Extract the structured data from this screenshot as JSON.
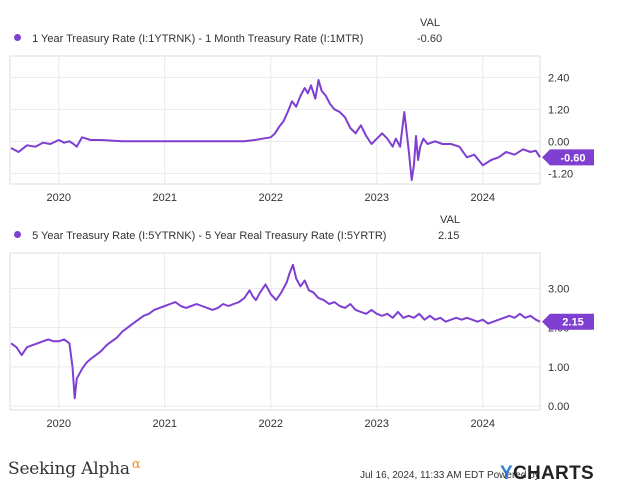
{
  "header": {
    "val_label": "VAL"
  },
  "colors": {
    "line": "#7f3fd1",
    "label_bg": "#7f3fd1",
    "grid": "#e9e9e9",
    "axis_text": "#333333"
  },
  "footer": {
    "brand": "Seeking Alpha",
    "brand_symbol": "α",
    "timestamp": "Jul 16, 2024, 11:33 AM EDT",
    "powered_by": "Powered by",
    "ycharts": "YCHARTS"
  },
  "chart_data": [
    {
      "type": "line",
      "series": [
        {
          "name": "1 Year Treasury Rate (I:1YTRNK) - 1 Month Treasury Rate (I:1MTR)",
          "x": [
            2019.55,
            2019.62,
            2019.7,
            2019.78,
            2019.85,
            2019.92,
            2020.0,
            2020.05,
            2020.1,
            2020.14,
            2020.17,
            2020.19,
            2020.22,
            2020.3,
            2020.4,
            2020.6,
            2020.8,
            2021.0,
            2021.2,
            2021.4,
            2021.6,
            2021.75,
            2021.85,
            2021.92,
            2022.0,
            2022.04,
            2022.08,
            2022.12,
            2022.16,
            2022.2,
            2022.24,
            2022.28,
            2022.32,
            2022.35,
            2022.38,
            2022.42,
            2022.45,
            2022.48,
            2022.52,
            2022.56,
            2022.6,
            2022.65,
            2022.7,
            2022.75,
            2022.8,
            2022.85,
            2022.9,
            2022.95,
            2023.0,
            2023.05,
            2023.1,
            2023.15,
            2023.18,
            2023.22,
            2023.26,
            2023.3,
            2023.33,
            2023.35,
            2023.37,
            2023.39,
            2023.41,
            2023.44,
            2023.48,
            2023.55,
            2023.62,
            2023.7,
            2023.78,
            2023.85,
            2023.92,
            2024.0,
            2024.08,
            2024.15,
            2024.22,
            2024.3,
            2024.38,
            2024.45,
            2024.5,
            2024.54
          ],
          "y": [
            -0.25,
            -0.4,
            -0.15,
            -0.2,
            -0.05,
            -0.1,
            0.05,
            -0.05,
            0.0,
            -0.1,
            -0.2,
            -0.05,
            0.15,
            0.05,
            0.05,
            0.0,
            0.0,
            0.0,
            0.0,
            0.0,
            0.0,
            0.0,
            0.05,
            0.1,
            0.15,
            0.3,
            0.55,
            0.75,
            1.1,
            1.5,
            1.3,
            1.7,
            2.0,
            1.8,
            2.1,
            1.6,
            2.3,
            1.9,
            1.7,
            1.4,
            1.2,
            1.1,
            0.9,
            0.5,
            0.3,
            0.6,
            0.2,
            -0.1,
            0.1,
            0.3,
            0.1,
            -0.2,
            0.1,
            -0.2,
            1.1,
            -0.3,
            -1.45,
            -0.9,
            0.2,
            -0.7,
            -0.2,
            0.1,
            -0.1,
            0.0,
            -0.1,
            -0.1,
            -0.2,
            -0.6,
            -0.5,
            -0.9,
            -0.7,
            -0.6,
            -0.4,
            -0.5,
            -0.3,
            -0.4,
            -0.35,
            -0.6
          ]
        }
      ],
      "yticks": [
        2.4,
        1.2,
        0.0,
        -1.2
      ],
      "ytick_labels": [
        "2.40",
        "1.20",
        "0.00",
        "-1.20"
      ],
      "xticks": [
        2020,
        2021,
        2022,
        2023,
        2024
      ],
      "ylim": [
        -1.6,
        3.2
      ],
      "xlim": [
        2019.54,
        2024.54
      ],
      "current_value": "-0.60"
    },
    {
      "type": "line",
      "series": [
        {
          "name": "5 Year Treasury Rate (I:5YTRNK) - 5 Year Real Treasury Rate (I:5YRTR)",
          "x": [
            2019.55,
            2019.6,
            2019.65,
            2019.7,
            2019.75,
            2019.8,
            2019.85,
            2019.9,
            2019.95,
            2020.0,
            2020.05,
            2020.1,
            2020.13,
            2020.15,
            2020.17,
            2020.19,
            2020.22,
            2020.26,
            2020.3,
            2020.35,
            2020.4,
            2020.45,
            2020.5,
            2020.55,
            2020.6,
            2020.65,
            2020.7,
            2020.75,
            2020.8,
            2020.85,
            2020.9,
            2020.95,
            2021.0,
            2021.05,
            2021.1,
            2021.15,
            2021.2,
            2021.25,
            2021.3,
            2021.35,
            2021.4,
            2021.45,
            2021.5,
            2021.55,
            2021.6,
            2021.65,
            2021.7,
            2021.75,
            2021.8,
            2021.83,
            2021.86,
            2021.9,
            2021.95,
            2022.0,
            2022.05,
            2022.1,
            2022.15,
            2022.18,
            2022.21,
            2022.24,
            2022.28,
            2022.32,
            2022.36,
            2022.4,
            2022.45,
            2022.5,
            2022.55,
            2022.6,
            2022.65,
            2022.7,
            2022.75,
            2022.8,
            2022.85,
            2022.9,
            2022.95,
            2023.0,
            2023.05,
            2023.1,
            2023.15,
            2023.2,
            2023.25,
            2023.3,
            2023.35,
            2023.4,
            2023.45,
            2023.5,
            2023.55,
            2023.6,
            2023.65,
            2023.7,
            2023.75,
            2023.8,
            2023.85,
            2023.9,
            2023.95,
            2024.0,
            2024.05,
            2024.1,
            2024.15,
            2024.2,
            2024.25,
            2024.3,
            2024.35,
            2024.4,
            2024.45,
            2024.5,
            2024.54
          ],
          "y": [
            1.6,
            1.5,
            1.3,
            1.5,
            1.55,
            1.6,
            1.65,
            1.7,
            1.65,
            1.65,
            1.7,
            1.6,
            1.0,
            0.2,
            0.7,
            0.8,
            0.95,
            1.1,
            1.2,
            1.3,
            1.4,
            1.55,
            1.65,
            1.75,
            1.9,
            2.0,
            2.1,
            2.2,
            2.3,
            2.35,
            2.45,
            2.5,
            2.55,
            2.6,
            2.65,
            2.55,
            2.5,
            2.55,
            2.6,
            2.55,
            2.5,
            2.45,
            2.5,
            2.6,
            2.55,
            2.6,
            2.65,
            2.75,
            2.95,
            2.8,
            2.7,
            2.9,
            3.1,
            2.85,
            2.7,
            2.9,
            3.15,
            3.4,
            3.6,
            3.25,
            3.05,
            3.2,
            2.95,
            2.9,
            2.75,
            2.7,
            2.6,
            2.65,
            2.55,
            2.5,
            2.6,
            2.45,
            2.4,
            2.35,
            2.45,
            2.35,
            2.3,
            2.35,
            2.25,
            2.4,
            2.25,
            2.3,
            2.25,
            2.35,
            2.2,
            2.3,
            2.2,
            2.25,
            2.15,
            2.2,
            2.25,
            2.2,
            2.25,
            2.2,
            2.15,
            2.2,
            2.1,
            2.15,
            2.2,
            2.25,
            2.3,
            2.25,
            2.35,
            2.25,
            2.3,
            2.2,
            2.15
          ],
          "x_unit": "year"
        }
      ],
      "yticks": [
        3.0,
        2.0,
        1.0,
        0.0
      ],
      "ytick_labels": [
        "3.00",
        "2.00",
        "1.00",
        "0.00"
      ],
      "xticks": [
        2020,
        2021,
        2022,
        2023,
        2024
      ],
      "ylim": [
        -0.1,
        3.9
      ],
      "xlim": [
        2019.54,
        2024.54
      ],
      "current_value": "2.15"
    }
  ]
}
